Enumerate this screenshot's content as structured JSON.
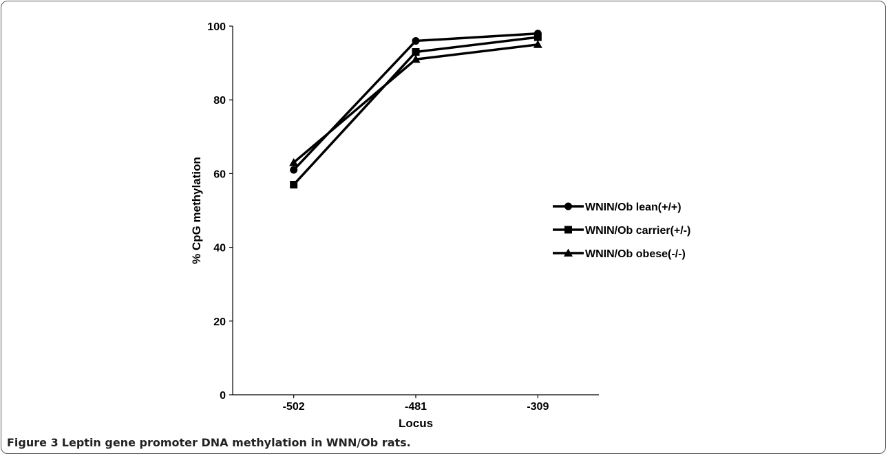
{
  "caption": {
    "label": "Figure 3",
    "title": "Leptin gene promoter DNA methylation in WNN/Ob rats."
  },
  "chart_data": {
    "type": "line",
    "xlabel": "Locus",
    "ylabel": "% CpG methylation",
    "categories": [
      "-502",
      "-481",
      "-309"
    ],
    "ylim": [
      0,
      100
    ],
    "yticks": [
      0,
      20,
      40,
      60,
      80,
      100
    ],
    "grid": false,
    "legend_position": "right",
    "series": [
      {
        "name": "WNIN/Ob lean(+/+)",
        "marker": "circle",
        "values": [
          61,
          96,
          98
        ]
      },
      {
        "name": "WNIN/Ob carrier(+/-)",
        "marker": "square",
        "values": [
          57,
          93,
          97
        ]
      },
      {
        "name": "WNIN/Ob obese(-/-)",
        "marker": "triangle",
        "values": [
          63,
          91,
          95
        ]
      }
    ],
    "colors": {
      "line": "#000000"
    }
  }
}
